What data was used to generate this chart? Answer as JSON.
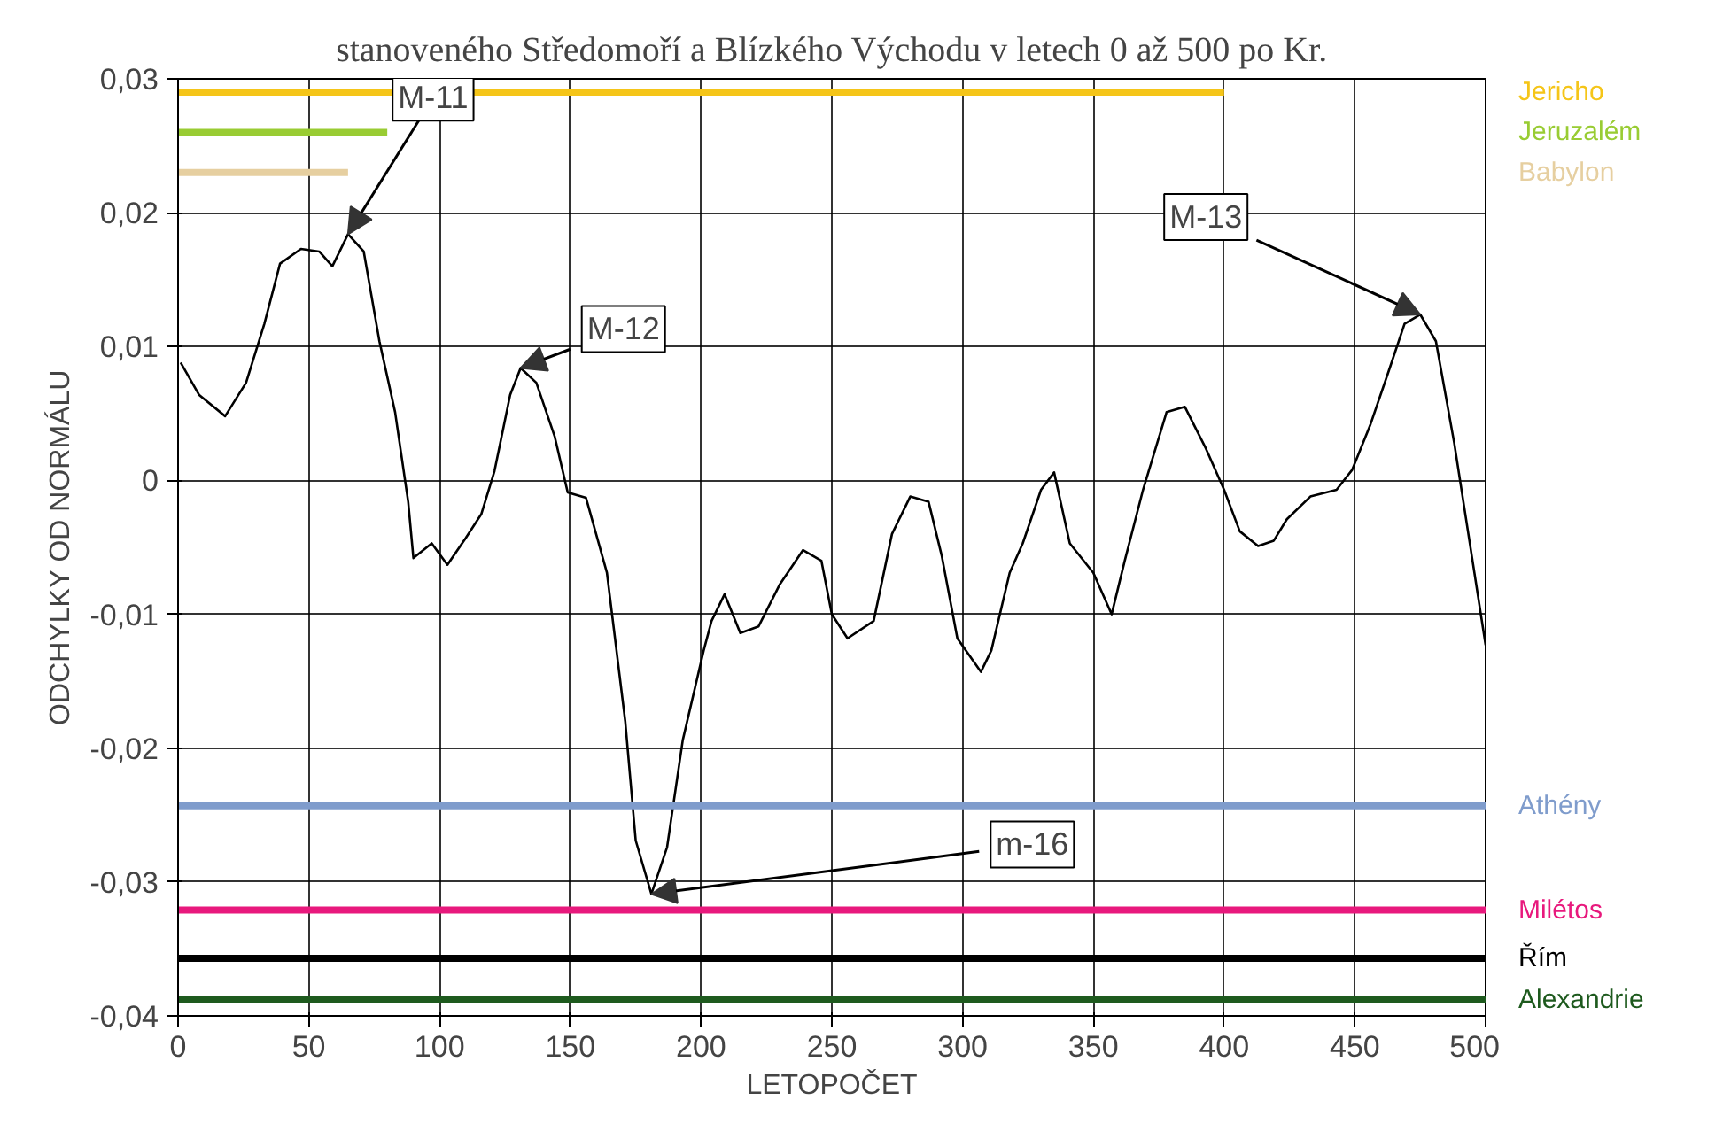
{
  "chart_data": {
    "type": "line",
    "title": "stanoveného Středomoří a Blízkého Východu v letech 0 až 500 po Kr.",
    "xlabel": "LETOPOČET",
    "ylabel": "ODCHYLKY OD NORMÁLU",
    "xlim": [
      0,
      500
    ],
    "ylim": [
      -0.04,
      0.03
    ],
    "xticks": [
      0,
      50,
      100,
      150,
      200,
      250,
      300,
      350,
      400,
      450,
      500
    ],
    "yticks": [
      {
        "value": -0.04,
        "label": "-0,04"
      },
      {
        "value": -0.03,
        "label": "-0,03"
      },
      {
        "value": -0.02,
        "label": "-0,02"
      },
      {
        "value": -0.01,
        "label": "-0,01"
      },
      0,
      {
        "value": 0.01,
        "label": "0,01"
      },
      {
        "value": 0.02,
        "label": "0,02"
      },
      {
        "value": 0.03,
        "label": "0,03"
      }
    ],
    "grid": true,
    "series": [
      {
        "color": "#000000",
        "x": [
          1,
          8,
          18,
          26,
          33,
          39,
          47,
          54,
          59,
          65,
          71,
          77,
          83,
          88,
          90,
          97,
          103,
          110,
          116,
          121,
          127,
          131,
          137,
          144,
          149,
          156,
          164,
          171,
          175,
          181,
          187,
          193,
          201,
          204,
          209,
          215,
          222,
          230,
          239,
          246,
          250,
          256,
          266,
          273,
          280,
          287,
          292,
          298,
          307,
          311,
          318,
          323,
          330,
          335,
          341,
          350,
          357,
          362,
          369,
          378,
          385,
          393,
          400,
          406,
          413,
          419,
          424,
          433,
          443,
          449,
          456,
          463,
          469,
          475,
          481,
          488,
          495,
          500
        ],
        "values": [
          0.0088,
          0.0064,
          0.0048,
          0.0073,
          0.0117,
          0.0162,
          0.0173,
          0.0171,
          0.016,
          0.0184,
          0.0171,
          0.0104,
          0.0051,
          -0.0016,
          -0.0058,
          -0.0047,
          -0.0063,
          -0.0043,
          -0.0025,
          0.0007,
          0.0064,
          0.0084,
          0.0073,
          0.0033,
          -0.0009,
          -0.0013,
          -0.0069,
          -0.018,
          -0.0269,
          -0.0309,
          -0.0274,
          -0.0194,
          -0.0127,
          -0.0105,
          -0.0085,
          -0.0114,
          -0.0109,
          -0.0078,
          -0.0052,
          -0.006,
          -0.01,
          -0.0118,
          -0.0105,
          -0.004,
          -0.0012,
          -0.0016,
          -0.0056,
          -0.0118,
          -0.0143,
          -0.0127,
          -0.0069,
          -0.0047,
          -0.0007,
          0.0006,
          -0.0047,
          -0.0069,
          -0.01,
          -0.006,
          -0.0007,
          0.0051,
          0.0055,
          0.0024,
          -0.0007,
          -0.0038,
          -0.0049,
          -0.0045,
          -0.0029,
          -0.0012,
          -0.0007,
          0.0008,
          0.0042,
          0.0082,
          0.0117,
          0.0124,
          0.0104,
          0.0028,
          -0.006,
          -0.0123
        ]
      },
      {
        "name": "Jericho",
        "color": "#f5c518",
        "x": [
          0,
          400
        ],
        "values": [
          0.029,
          0.029
        ]
      },
      {
        "name": "Jeruzalém",
        "color": "#99cc33",
        "x": [
          0,
          80
        ],
        "values": [
          0.026,
          0.026
        ]
      },
      {
        "name": "Babylon",
        "color": "#e6cfa0",
        "x": [
          0,
          65
        ],
        "values": [
          0.023,
          0.023
        ]
      },
      {
        "name": "Athény",
        "color": "#7f9ccc",
        "x": [
          0,
          500
        ],
        "values": [
          -0.0243,
          -0.0243
        ]
      },
      {
        "name": "Milétos",
        "color": "#e8197d",
        "x": [
          0,
          500
        ],
        "values": [
          -0.0321,
          -0.0321
        ]
      },
      {
        "name": "Řím",
        "color": "#000000",
        "x": [
          0,
          500
        ],
        "values": [
          -0.0357,
          -0.0357
        ]
      },
      {
        "name": "Alexandrie",
        "color": "#1e5a1e",
        "x": [
          0,
          500
        ],
        "values": [
          -0.0388,
          -0.0388
        ]
      }
    ],
    "annotations": [
      {
        "text": "M-11",
        "x": 65,
        "y": 0.0184
      },
      {
        "text": "M-12",
        "x": 131,
        "y": 0.0084
      },
      {
        "text": "M-13",
        "x": 475,
        "y": 0.0124
      },
      {
        "text": "m-16",
        "x": 181,
        "y": -0.0309
      }
    ]
  }
}
